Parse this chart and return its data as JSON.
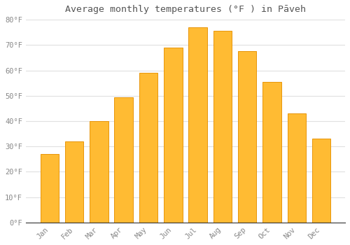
{
  "title": "Average monthly temperatures (°F ) in Pāveh",
  "months": [
    "Jan",
    "Feb",
    "Mar",
    "Apr",
    "May",
    "Jun",
    "Jul",
    "Aug",
    "Sep",
    "Oct",
    "Nov",
    "Dec"
  ],
  "values": [
    27,
    32,
    40,
    49.5,
    59,
    69,
    77,
    75.5,
    67.5,
    55.5,
    43,
    33
  ],
  "bar_color": "#FFBB33",
  "bar_edge_color": "#E8950A",
  "background_color": "#FFFFFF",
  "grid_color": "#E0E0E0",
  "ylim": [
    0,
    80
  ],
  "yticks": [
    0,
    10,
    20,
    30,
    40,
    50,
    60,
    70,
    80
  ],
  "title_fontsize": 9.5,
  "tick_fontsize": 7.5,
  "tick_label_color": "#888888",
  "title_color": "#555555"
}
